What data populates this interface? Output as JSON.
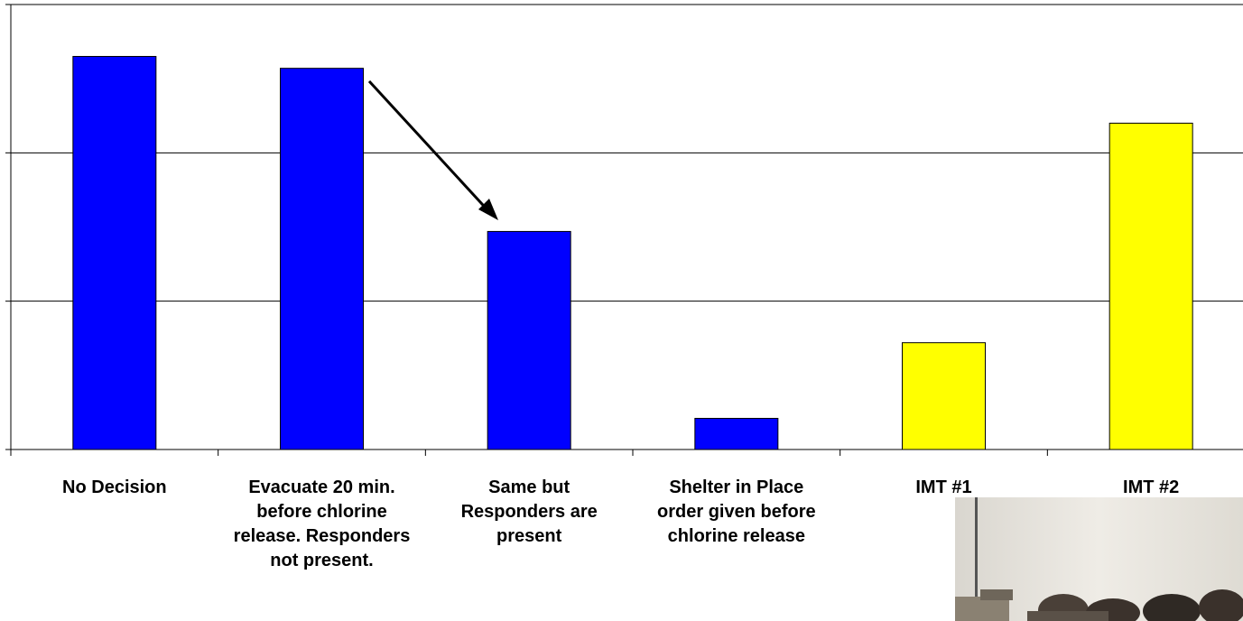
{
  "chart_data": {
    "type": "bar",
    "categories": [
      "No Decision",
      "Evacuate 20 min. before chlorine release. Responders not present.",
      "Same but Responders are present",
      "Shelter in Place order given before chlorine release",
      "IMT #1",
      "IMT #2"
    ],
    "values": [
      2.65,
      2.57,
      1.47,
      0.21,
      0.72,
      2.2
    ],
    "colors": [
      "#0000ff",
      "#0000ff",
      "#0000ff",
      "#0000ff",
      "#ffff00",
      "#ffff00"
    ],
    "ylim": [
      0,
      3
    ],
    "grid": true,
    "title": "",
    "xlabel": "",
    "ylabel": "",
    "annotation": "arrow-from-bar-2-to-bar-3"
  }
}
